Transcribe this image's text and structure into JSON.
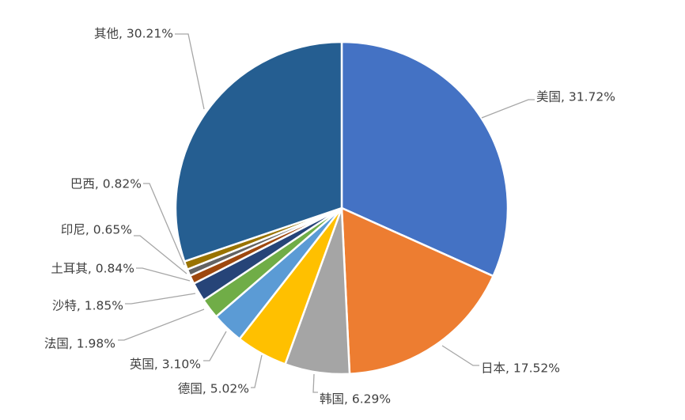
{
  "chart_data": {
    "type": "pie",
    "title": "",
    "start_angle_deg": 0,
    "direction": "clockwise",
    "slices": [
      {
        "label": "美国, 31.72%",
        "name": "美国",
        "value": 31.72,
        "color": "#4472C4"
      },
      {
        "label": "日本, 17.52%",
        "name": "日本",
        "value": 17.52,
        "color": "#ED7D31"
      },
      {
        "label": "韩国, 6.29%",
        "name": "韩国",
        "value": 6.29,
        "color": "#A5A5A5"
      },
      {
        "label": "德国, 5.02%",
        "name": "德国",
        "value": 5.02,
        "color": "#FFC000"
      },
      {
        "label": "英国, 3.10%",
        "name": "英国",
        "value": 3.1,
        "color": "#5B9BD5"
      },
      {
        "label": "法国, 1.98%",
        "name": "法国",
        "value": 1.98,
        "color": "#70AD47"
      },
      {
        "label": "沙特, 1.85%",
        "name": "沙特",
        "value": 1.85,
        "color": "#264478"
      },
      {
        "label": "土耳其, 0.84%",
        "name": "土耳其",
        "value": 0.84,
        "color": "#9E480E"
      },
      {
        "label": "印尼, 0.65%",
        "name": "印尼",
        "value": 0.65,
        "color": "#636363"
      },
      {
        "label": "巴西, 0.82%",
        "name": "巴西",
        "value": 0.82,
        "color": "#997300"
      },
      {
        "label": "其他, 30.21%",
        "name": "其他",
        "value": 30.21,
        "color": "#255E91"
      }
    ],
    "legend": "none",
    "data_labels": "outside-with-leader-lines"
  }
}
